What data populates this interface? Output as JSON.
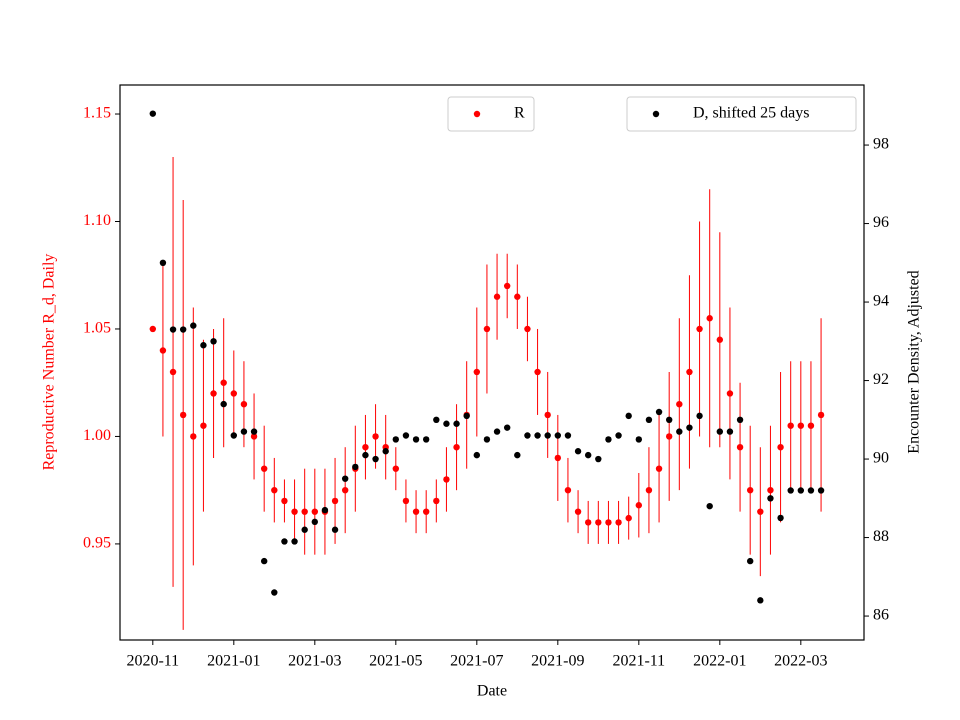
{
  "chart_data": {
    "type": "scatter",
    "x_label": "Date",
    "y_label": "Reproductive Number R_d, Daily",
    "y2_label": "Encounter Density, Adjusted",
    "x": [
      0,
      0.25,
      0.5,
      0.75,
      1,
      1.25,
      1.5,
      1.75,
      2,
      2.25,
      2.5,
      2.75,
      3,
      3.25,
      3.5,
      3.75,
      4,
      4.25,
      4.5,
      4.75,
      5,
      5.25,
      5.5,
      5.75,
      6,
      6.25,
      6.5,
      6.75,
      7,
      7.25,
      7.5,
      7.75,
      8,
      8.25,
      8.5,
      8.75,
      9,
      9.25,
      9.5,
      9.75,
      10,
      10.25,
      10.5,
      10.75,
      11,
      11.25,
      11.5,
      11.75,
      12,
      12.25,
      12.5,
      12.75,
      13,
      13.25,
      13.5,
      13.75,
      14,
      14.25,
      14.5,
      14.75,
      15,
      15.25,
      15.5,
      15.75,
      16,
      16.25,
      16.5
    ],
    "xlim": [
      -0.81,
      17.56
    ],
    "xticks": [
      {
        "value": 0,
        "label": "2020-11"
      },
      {
        "value": 2,
        "label": "2021-01"
      },
      {
        "value": 4,
        "label": "2021-03"
      },
      {
        "value": 6,
        "label": "2021-05"
      },
      {
        "value": 8,
        "label": "2021-07"
      },
      {
        "value": 10,
        "label": "2021-09"
      },
      {
        "value": 12,
        "label": "2021-11"
      },
      {
        "value": 14,
        "label": "2022-01"
      },
      {
        "value": 16,
        "label": "2022-03"
      }
    ],
    "ylim": [
      0.9053,
      1.1635
    ],
    "yticks": [
      0.95,
      {
        "value": 1,
        "label": "1.00"
      },
      1.05,
      {
        "value": 1.1,
        "label": "1.10"
      },
      1.15
    ],
    "y2lim": [
      85.39,
      99.53
    ],
    "y2ticks": [
      86,
      88,
      90,
      92,
      94,
      96,
      98
    ],
    "series": [
      {
        "name": "R",
        "color": "#ff0000",
        "axis": "y",
        "legend": "upper center",
        "values": [
          1.05,
          1.04,
          1.03,
          1.01,
          1.0,
          1.005,
          1.02,
          1.025,
          1.02,
          1.015,
          1.0,
          0.985,
          0.975,
          0.97,
          0.965,
          0.965,
          0.965,
          0.965,
          0.97,
          0.975,
          0.985,
          0.995,
          1.0,
          0.995,
          0.985,
          0.97,
          0.965,
          0.965,
          0.97,
          0.98,
          0.995,
          1.01,
          1.03,
          1.05,
          1.065,
          1.07,
          1.065,
          1.05,
          1.03,
          1.01,
          0.99,
          0.975,
          0.965,
          0.96,
          0.96,
          0.96,
          0.96,
          0.962,
          0.968,
          0.975,
          0.985,
          1.0,
          1.015,
          1.03,
          1.05,
          1.055,
          1.045,
          1.02,
          0.995,
          0.975,
          0.965,
          0.975,
          0.995,
          1.005,
          1.005,
          1.005,
          1.01
        ],
        "errors": [
          0.0,
          0.04,
          0.1,
          0.1,
          0.06,
          0.04,
          0.03,
          0.03,
          0.02,
          0.02,
          0.02,
          0.02,
          0.015,
          0.01,
          0.015,
          0.02,
          0.02,
          0.02,
          0.02,
          0.02,
          0.02,
          0.015,
          0.015,
          0.015,
          0.01,
          0.01,
          0.01,
          0.01,
          0.01,
          0.015,
          0.02,
          0.025,
          0.03,
          0.03,
          0.02,
          0.015,
          0.015,
          0.015,
          0.02,
          0.02,
          0.02,
          0.015,
          0.01,
          0.01,
          0.01,
          0.01,
          0.01,
          0.01,
          0.015,
          0.02,
          0.025,
          0.03,
          0.04,
          0.045,
          0.05,
          0.06,
          0.05,
          0.04,
          0.03,
          0.03,
          0.03,
          0.03,
          0.035,
          0.03,
          0.03,
          0.03,
          0.045
        ]
      },
      {
        "name": "D, shifted 25 days",
        "color": "#000000",
        "axis": "y2",
        "legend": "upper right",
        "values": [
          98.8,
          95.0,
          93.3,
          93.3,
          93.4,
          92.9,
          93.0,
          91.4,
          90.6,
          90.7,
          90.7,
          87.4,
          86.6,
          87.9,
          87.9,
          88.2,
          88.4,
          88.7,
          88.2,
          89.5,
          89.8,
          90.1,
          90.0,
          90.2,
          90.5,
          90.6,
          90.5,
          90.5,
          91.0,
          90.9,
          90.9,
          91.1,
          90.1,
          90.5,
          90.7,
          90.8,
          90.1,
          90.6,
          90.6,
          90.6,
          90.6,
          90.6,
          90.2,
          90.1,
          90.0,
          90.5,
          90.6,
          91.1,
          90.5,
          91.0,
          91.2,
          91.0,
          90.7,
          90.8,
          91.1,
          88.8,
          90.7,
          90.7,
          91.0,
          87.4,
          86.4,
          89.0,
          88.5,
          89.2,
          89.2,
          89.2,
          89.2
        ]
      }
    ]
  }
}
